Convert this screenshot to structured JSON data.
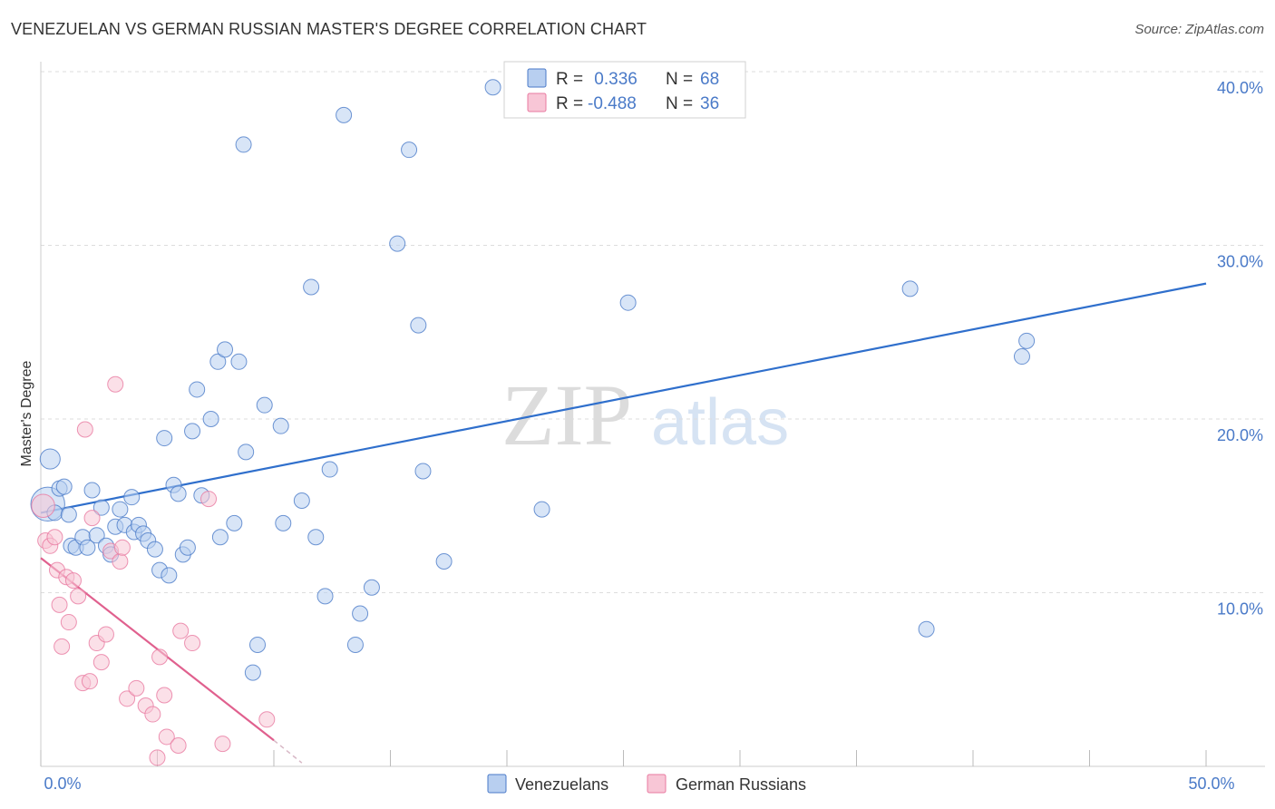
{
  "header": {
    "title": "VENEZUELAN VS GERMAN RUSSIAN MASTER'S DEGREE CORRELATION CHART",
    "source": "Source: ZipAtlas.com"
  },
  "watermark": {
    "zip": "ZIP",
    "atlas": "atlas"
  },
  "colors": {
    "blue": "#4a7ac8",
    "blue_fill": "#b8cff0",
    "blue_line": "#2f6fcc",
    "pink": "#e879a0",
    "pink_fill": "#f8c6d6",
    "pink_line": "#e0608e",
    "grid": "#dddddd"
  },
  "chart_data": {
    "type": "scatter",
    "title": "VENEZUELAN VS GERMAN RUSSIAN MASTER'S DEGREE CORRELATION CHART",
    "xlabel": "",
    "ylabel": "Master's Degree",
    "xlim": [
      0,
      50
    ],
    "ylim": [
      0,
      40
    ],
    "x_ticks": [
      0,
      5,
      10,
      15,
      20,
      25,
      30,
      35,
      40,
      45,
      50
    ],
    "x_tick_labels": [
      "0.0%",
      "",
      "",
      "",
      "",
      "",
      "",
      "",
      "",
      "",
      "50.0%"
    ],
    "y_ticks": [
      10,
      20,
      30,
      40
    ],
    "y_tick_labels": [
      "10.0%",
      "20.0%",
      "30.0%",
      "40.0%"
    ],
    "grid": true,
    "legend_position": "top-center",
    "legend": [
      {
        "name": "Venezuelans",
        "r_label": "R =",
        "r_value": " 0.336",
        "n_label": "N =",
        "n_value": "68"
      },
      {
        "name": "German Russians",
        "r_label": "R =",
        "r_value": "-0.488",
        "n_label": "N =",
        "n_value": "36"
      }
    ],
    "series": [
      {
        "name": "Venezuelans",
        "color": "#4a7ac8",
        "trendline": {
          "x": [
            0,
            50
          ],
          "y": [
            14.6,
            27.8
          ],
          "style": "solid"
        },
        "points": [
          {
            "x": 0.3,
            "y": 15.1,
            "s": 2.2
          },
          {
            "x": 0.4,
            "y": 17.7,
            "s": 1.3
          },
          {
            "x": 0.6,
            "y": 14.6,
            "s": 1
          },
          {
            "x": 0.8,
            "y": 16.0,
            "s": 1
          },
          {
            "x": 1.0,
            "y": 16.1,
            "s": 1
          },
          {
            "x": 1.2,
            "y": 14.5,
            "s": 1
          },
          {
            "x": 1.3,
            "y": 12.7,
            "s": 1
          },
          {
            "x": 1.5,
            "y": 12.6,
            "s": 1
          },
          {
            "x": 1.8,
            "y": 13.2,
            "s": 1
          },
          {
            "x": 2.0,
            "y": 12.6,
            "s": 1
          },
          {
            "x": 2.2,
            "y": 15.9,
            "s": 1
          },
          {
            "x": 2.4,
            "y": 13.3,
            "s": 1
          },
          {
            "x": 2.6,
            "y": 14.9,
            "s": 1
          },
          {
            "x": 2.8,
            "y": 12.7,
            "s": 1
          },
          {
            "x": 3.0,
            "y": 12.2,
            "s": 1
          },
          {
            "x": 3.2,
            "y": 13.8,
            "s": 1
          },
          {
            "x": 3.4,
            "y": 14.8,
            "s": 1
          },
          {
            "x": 3.6,
            "y": 13.9,
            "s": 1
          },
          {
            "x": 3.9,
            "y": 15.5,
            "s": 1
          },
          {
            "x": 4.0,
            "y": 13.5,
            "s": 1
          },
          {
            "x": 4.2,
            "y": 13.9,
            "s": 1
          },
          {
            "x": 4.4,
            "y": 13.4,
            "s": 1
          },
          {
            "x": 4.6,
            "y": 13.0,
            "s": 1
          },
          {
            "x": 4.9,
            "y": 12.5,
            "s": 1
          },
          {
            "x": 5.1,
            "y": 11.3,
            "s": 1
          },
          {
            "x": 5.3,
            "y": 18.9,
            "s": 1
          },
          {
            "x": 5.5,
            "y": 11.0,
            "s": 1
          },
          {
            "x": 5.7,
            "y": 16.2,
            "s": 1
          },
          {
            "x": 5.9,
            "y": 15.7,
            "s": 1
          },
          {
            "x": 6.1,
            "y": 12.2,
            "s": 1
          },
          {
            "x": 6.3,
            "y": 12.6,
            "s": 1
          },
          {
            "x": 6.5,
            "y": 19.3,
            "s": 1
          },
          {
            "x": 6.7,
            "y": 21.7,
            "s": 1
          },
          {
            "x": 6.9,
            "y": 15.6,
            "s": 1
          },
          {
            "x": 7.3,
            "y": 20.0,
            "s": 1
          },
          {
            "x": 7.6,
            "y": 23.3,
            "s": 1
          },
          {
            "x": 7.7,
            "y": 13.2,
            "s": 1
          },
          {
            "x": 7.9,
            "y": 24.0,
            "s": 1
          },
          {
            "x": 8.3,
            "y": 14.0,
            "s": 1
          },
          {
            "x": 8.5,
            "y": 23.3,
            "s": 1
          },
          {
            "x": 8.7,
            "y": 35.8,
            "s": 1
          },
          {
            "x": 8.8,
            "y": 18.1,
            "s": 1
          },
          {
            "x": 9.1,
            "y": 5.4,
            "s": 1
          },
          {
            "x": 9.3,
            "y": 7.0,
            "s": 1
          },
          {
            "x": 9.6,
            "y": 20.8,
            "s": 1
          },
          {
            "x": 10.3,
            "y": 19.6,
            "s": 1
          },
          {
            "x": 10.4,
            "y": 14.0,
            "s": 1
          },
          {
            "x": 11.2,
            "y": 15.3,
            "s": 1
          },
          {
            "x": 11.6,
            "y": 27.6,
            "s": 1
          },
          {
            "x": 11.8,
            "y": 13.2,
            "s": 1
          },
          {
            "x": 12.2,
            "y": 9.8,
            "s": 1
          },
          {
            "x": 12.4,
            "y": 17.1,
            "s": 1
          },
          {
            "x": 13.0,
            "y": 37.5,
            "s": 1
          },
          {
            "x": 13.5,
            "y": 7.0,
            "s": 1
          },
          {
            "x": 13.7,
            "y": 8.8,
            "s": 1
          },
          {
            "x": 14.2,
            "y": 10.3,
            "s": 1
          },
          {
            "x": 15.3,
            "y": 30.1,
            "s": 1
          },
          {
            "x": 15.8,
            "y": 35.5,
            "s": 1
          },
          {
            "x": 16.2,
            "y": 25.4,
            "s": 1
          },
          {
            "x": 16.4,
            "y": 17.0,
            "s": 1
          },
          {
            "x": 17.3,
            "y": 11.8,
            "s": 1
          },
          {
            "x": 19.4,
            "y": 39.1,
            "s": 1
          },
          {
            "x": 21.5,
            "y": 14.8,
            "s": 1
          },
          {
            "x": 25.2,
            "y": 26.7,
            "s": 1
          },
          {
            "x": 37.3,
            "y": 27.5,
            "s": 1
          },
          {
            "x": 38.0,
            "y": 7.9,
            "s": 1
          },
          {
            "x": 42.1,
            "y": 23.6,
            "s": 1
          },
          {
            "x": 42.3,
            "y": 24.5,
            "s": 1
          }
        ]
      },
      {
        "name": "German Russians",
        "color": "#e879a0",
        "trendline": {
          "x": [
            0,
            10.0
          ],
          "y": [
            12.0,
            1.5
          ],
          "dash_to": [
            11.2,
            0.2
          ],
          "style": "solid+dashed"
        },
        "points": [
          {
            "x": 0.1,
            "y": 15.0,
            "s": 1.5
          },
          {
            "x": 0.2,
            "y": 13.0,
            "s": 1
          },
          {
            "x": 0.4,
            "y": 12.7,
            "s": 1
          },
          {
            "x": 0.6,
            "y": 13.2,
            "s": 1
          },
          {
            "x": 0.7,
            "y": 11.3,
            "s": 1
          },
          {
            "x": 0.8,
            "y": 9.3,
            "s": 1
          },
          {
            "x": 0.9,
            "y": 6.9,
            "s": 1
          },
          {
            "x": 1.1,
            "y": 10.9,
            "s": 1
          },
          {
            "x": 1.2,
            "y": 8.3,
            "s": 1
          },
          {
            "x": 1.4,
            "y": 10.7,
            "s": 1
          },
          {
            "x": 1.6,
            "y": 9.8,
            "s": 1
          },
          {
            "x": 1.8,
            "y": 4.8,
            "s": 1
          },
          {
            "x": 1.9,
            "y": 19.4,
            "s": 1
          },
          {
            "x": 2.1,
            "y": 4.9,
            "s": 1
          },
          {
            "x": 2.2,
            "y": 14.3,
            "s": 1
          },
          {
            "x": 2.4,
            "y": 7.1,
            "s": 1
          },
          {
            "x": 2.6,
            "y": 6.0,
            "s": 1
          },
          {
            "x": 2.8,
            "y": 7.6,
            "s": 1
          },
          {
            "x": 3.0,
            "y": 12.4,
            "s": 1
          },
          {
            "x": 3.2,
            "y": 22.0,
            "s": 1
          },
          {
            "x": 3.4,
            "y": 11.8,
            "s": 1
          },
          {
            "x": 3.5,
            "y": 12.6,
            "s": 1
          },
          {
            "x": 3.7,
            "y": 3.9,
            "s": 1
          },
          {
            "x": 4.1,
            "y": 4.5,
            "s": 1
          },
          {
            "x": 4.5,
            "y": 3.5,
            "s": 1
          },
          {
            "x": 4.8,
            "y": 3.0,
            "s": 1
          },
          {
            "x": 5.0,
            "y": 0.5,
            "s": 1
          },
          {
            "x": 5.1,
            "y": 6.3,
            "s": 1
          },
          {
            "x": 5.3,
            "y": 4.1,
            "s": 1
          },
          {
            "x": 5.4,
            "y": 1.7,
            "s": 1
          },
          {
            "x": 5.9,
            "y": 1.2,
            "s": 1
          },
          {
            "x": 6.0,
            "y": 7.8,
            "s": 1
          },
          {
            "x": 6.5,
            "y": 7.1,
            "s": 1
          },
          {
            "x": 7.2,
            "y": 15.4,
            "s": 1
          },
          {
            "x": 7.8,
            "y": 1.3,
            "s": 1
          },
          {
            "x": 9.7,
            "y": 2.7,
            "s": 1
          }
        ]
      }
    ]
  }
}
